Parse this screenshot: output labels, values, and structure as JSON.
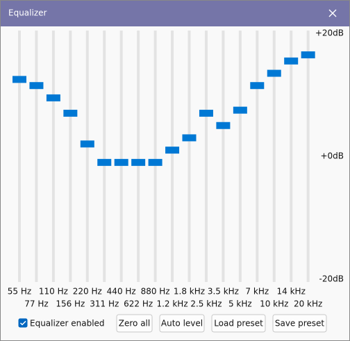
{
  "window": {
    "title": "Equalizer"
  },
  "chart_data": {
    "type": "equalizer",
    "categories": [
      "55 Hz",
      "77 Hz",
      "110 Hz",
      "156 Hz",
      "220 Hz",
      "311 Hz",
      "440 Hz",
      "622 Hz",
      "880 Hz",
      "1.2 kHz",
      "1.8 kHz",
      "2.5 kHz",
      "3.5 kHz",
      "5 kHz",
      "7 kHz",
      "10 kHz",
      "14 kHz",
      "20 kHz"
    ],
    "values": [
      12.5,
      11.5,
      9.5,
      7,
      2,
      -1,
      -1,
      -1,
      -1,
      1,
      3,
      7,
      5,
      7.5,
      11.5,
      13.5,
      15.5,
      16.5
    ],
    "color": "#0078d4",
    "ylim": [
      -20,
      20
    ],
    "yticks": [
      {
        "value": 20,
        "label": "+20dB"
      },
      {
        "value": 0,
        "label": "+0dB"
      },
      {
        "value": -20,
        "label": "-20dB"
      }
    ]
  },
  "controls": {
    "checkbox": {
      "label": "Equalizer enabled",
      "checked": true
    },
    "buttons": [
      "Zero all",
      "Auto level",
      "Load preset",
      "Save preset"
    ]
  }
}
